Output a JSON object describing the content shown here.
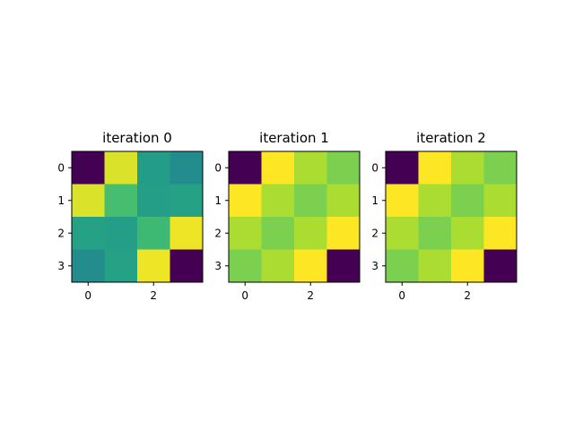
{
  "chart_data": [
    {
      "type": "heatmap",
      "title": "iteration 0",
      "xlabel": "",
      "ylabel": "",
      "colormap": "viridis",
      "value_range": [
        0,
        1
      ],
      "x_ticks": [
        "0",
        "2"
      ],
      "y_ticks": [
        "0",
        "1",
        "2",
        "3"
      ],
      "values": [
        [
          0.0,
          0.95,
          0.55,
          0.48
        ],
        [
          0.95,
          0.7,
          0.56,
          0.58
        ],
        [
          0.58,
          0.56,
          0.68,
          0.98
        ],
        [
          0.48,
          0.58,
          0.98,
          0.0
        ]
      ]
    },
    {
      "type": "heatmap",
      "title": "iteration 1",
      "xlabel": "",
      "ylabel": "",
      "colormap": "viridis",
      "value_range": [
        0,
        1
      ],
      "x_ticks": [
        "0",
        "2"
      ],
      "y_ticks": [
        "0",
        "1",
        "2",
        "3"
      ],
      "values": [
        [
          0.0,
          1.0,
          0.88,
          0.8
        ],
        [
          1.0,
          0.88,
          0.8,
          0.88
        ],
        [
          0.88,
          0.8,
          0.88,
          1.0
        ],
        [
          0.8,
          0.88,
          1.0,
          0.0
        ]
      ]
    },
    {
      "type": "heatmap",
      "title": "iteration 2",
      "xlabel": "",
      "ylabel": "",
      "colormap": "viridis",
      "value_range": [
        0,
        1
      ],
      "x_ticks": [
        "0",
        "2"
      ],
      "y_ticks": [
        "0",
        "1",
        "2",
        "3"
      ],
      "values": [
        [
          0.0,
          1.0,
          0.88,
          0.8
        ],
        [
          1.0,
          0.88,
          0.8,
          0.88
        ],
        [
          0.88,
          0.8,
          0.88,
          1.0
        ],
        [
          0.8,
          0.88,
          1.0,
          0.0
        ]
      ]
    }
  ]
}
